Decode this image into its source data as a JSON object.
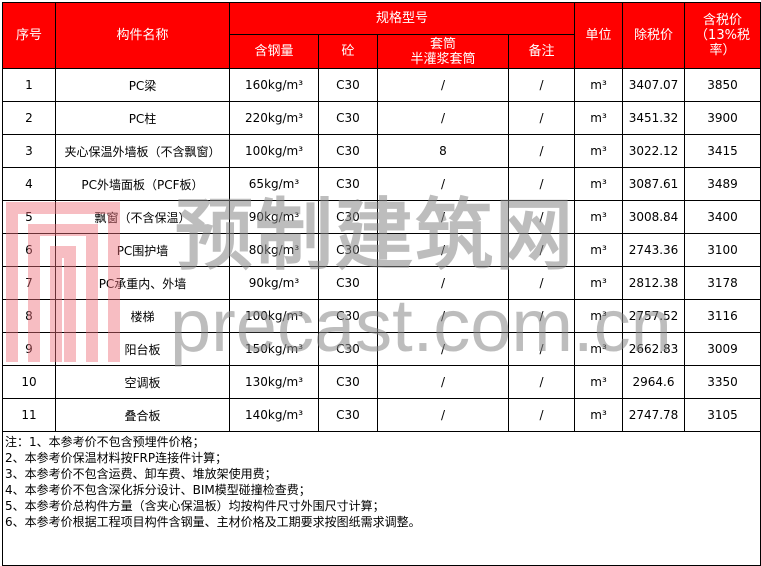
{
  "header": {
    "no": "序号",
    "name": "构件名称",
    "spec": "规格型号",
    "steel": "含钢量",
    "concrete": "砼",
    "sleeve": "套筒\n半灌浆套筒",
    "remark": "备注",
    "unit": "单位",
    "price_ex": "除税价",
    "price_in": "含税价（13%税率）"
  },
  "rows": [
    {
      "no": "1",
      "name": "PC梁",
      "steel": "160kg/m³",
      "concrete": "C30",
      "sleeve": "/",
      "remark": "/",
      "unit": "m³",
      "price_ex": "3407.07",
      "price_in": "3850"
    },
    {
      "no": "2",
      "name": "PC柱",
      "steel": "220kg/m³",
      "concrete": "C30",
      "sleeve": "/",
      "remark": "/",
      "unit": "m³",
      "price_ex": "3451.32",
      "price_in": "3900"
    },
    {
      "no": "3",
      "name": "夹心保温外墙板（不含飘窗）",
      "steel": "100kg/m³",
      "concrete": "C30",
      "sleeve": "8",
      "remark": "/",
      "unit": "m³",
      "price_ex": "3022.12",
      "price_in": "3415"
    },
    {
      "no": "4",
      "name": "PC外墙面板（PCF板）",
      "steel": "65kg/m³",
      "concrete": "C30",
      "sleeve": "/",
      "remark": "/",
      "unit": "m³",
      "price_ex": "3087.61",
      "price_in": "3489"
    },
    {
      "no": "5",
      "name": "飘窗（不含保温）",
      "steel": "90kg/m³",
      "concrete": "C30",
      "sleeve": "/",
      "remark": "/",
      "unit": "m³",
      "price_ex": "3008.84",
      "price_in": "3400"
    },
    {
      "no": "6",
      "name": "PC围护墙",
      "steel": "80kg/m³",
      "concrete": "C30",
      "sleeve": "/",
      "remark": "/",
      "unit": "m³",
      "price_ex": "2743.36",
      "price_in": "3100"
    },
    {
      "no": "7",
      "name": "PC承重内、外墙",
      "steel": "90kg/m³",
      "concrete": "C30",
      "sleeve": "/",
      "remark": "/",
      "unit": "m³",
      "price_ex": "2812.38",
      "price_in": "3178"
    },
    {
      "no": "8",
      "name": "楼梯",
      "steel": "100kg/m³",
      "concrete": "C30",
      "sleeve": "/",
      "remark": "/",
      "unit": "m³",
      "price_ex": "2757.52",
      "price_in": "3116"
    },
    {
      "no": "9",
      "name": "阳台板",
      "steel": "150kg/m³",
      "concrete": "C30",
      "sleeve": "/",
      "remark": "/",
      "unit": "m³",
      "price_ex": "2662.83",
      "price_in": "3009"
    },
    {
      "no": "10",
      "name": "空调板",
      "steel": "130kg/m³",
      "concrete": "C30",
      "sleeve": "/",
      "remark": "/",
      "unit": "m³",
      "price_ex": "2964.6",
      "price_in": "3350"
    },
    {
      "no": "11",
      "name": "叠合板",
      "steel": "140kg/m³",
      "concrete": "C30",
      "sleeve": "/",
      "remark": "/",
      "unit": "m³",
      "price_ex": "2747.78",
      "price_in": "3105"
    }
  ],
  "notes": [
    "注：1、本参考价不包含预埋件价格；",
    "2、本参考价保温材料按FRP连接件计算；",
    "3、本参考价不包含运费、卸车费、堆放架使用费；",
    "4、本参考价不包含深化拆分设计、BIM模型碰撞检查费；",
    "5、本参考价总构件方量（含夹心保温板）均按构件尺寸外围尺寸计算；",
    "6、本参考价根据工程项目构件含钢量、主材价格及工期要求按图纸需求调整。"
  ],
  "watermark": {
    "cn": "预制建筑网",
    "en": "precast.com.cn"
  },
  "colors": {
    "header_bg": "#ff0000",
    "header_text": "#ffffff"
  }
}
